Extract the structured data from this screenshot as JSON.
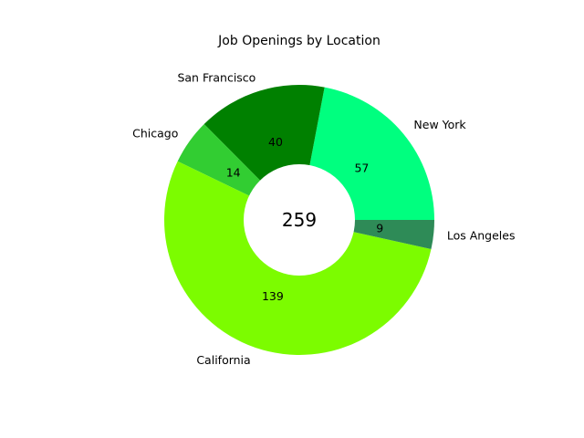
{
  "chart_data": {
    "type": "pie",
    "variant": "donut",
    "title": "Job Openings by Location",
    "center_label": "259",
    "slices": [
      {
        "label": "New York",
        "value": 57,
        "value_label": "57",
        "color": "#00FF7F"
      },
      {
        "label": "San Francisco",
        "value": 40,
        "value_label": "40",
        "color": "#008000"
      },
      {
        "label": "Chicago",
        "value": 14,
        "value_label": "14",
        "color": "#32CD32"
      },
      {
        "label": "California",
        "value": 139,
        "value_label": "139",
        "color": "#7CFC00"
      },
      {
        "label": "Los Angeles",
        "value": 9,
        "value_label": "9",
        "color": "#2E8B57"
      }
    ]
  }
}
